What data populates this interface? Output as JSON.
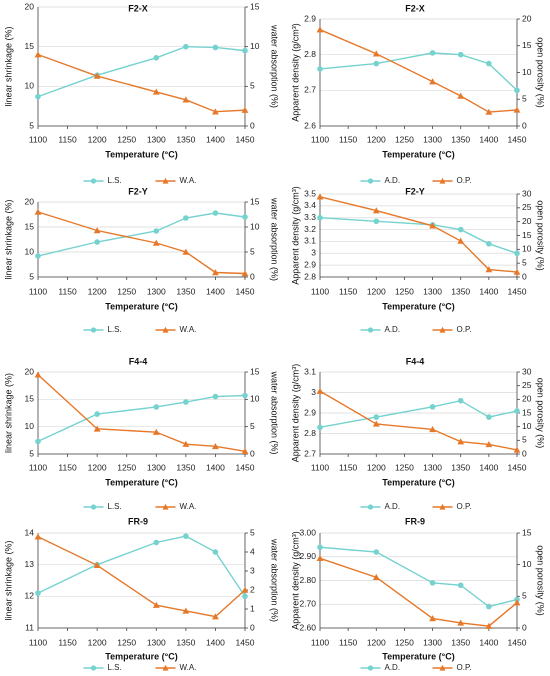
{
  "colors": {
    "ls_ad": "#74d2cf",
    "wa_op": "#e6782a",
    "axis": "#404040",
    "grid": "#d9d9d9"
  },
  "chart_data": [
    {
      "type": "line",
      "title": "F2-X",
      "xlabel": "Temperature (°C)",
      "ylabel_left": "linear shrinkage (%)",
      "ylabel_right": "water absorption (%)",
      "x": [
        1100,
        1200,
        1300,
        1350,
        1400,
        1450
      ],
      "xticks": [
        1100,
        1150,
        1200,
        1250,
        1300,
        1350,
        1400,
        1450
      ],
      "xlim": [
        1100,
        1450
      ],
      "ylim_left": [
        5,
        20
      ],
      "yticks_left": [
        5,
        10,
        15,
        20
      ],
      "ylim_right": [
        0,
        15
      ],
      "yticks_right": [
        0,
        5,
        10,
        15
      ],
      "series": [
        {
          "name": "L.S.",
          "axis": "left",
          "marker": "circle",
          "values": [
            8.7,
            11.4,
            13.6,
            15.0,
            14.9,
            14.5
          ]
        },
        {
          "name": "W.A.",
          "axis": "right",
          "marker": "triangle",
          "values": [
            9.0,
            6.3,
            4.3,
            3.3,
            1.8,
            2.0
          ]
        }
      ]
    },
    {
      "type": "line",
      "title": "F2-X",
      "xlabel": "Temperature (°C)",
      "ylabel_left": "Apparent density (g/cm³)",
      "ylabel_right": "open porosity (%)",
      "x": [
        1100,
        1200,
        1300,
        1350,
        1400,
        1450
      ],
      "xticks": [
        1100,
        1150,
        1200,
        1250,
        1300,
        1350,
        1400,
        1450
      ],
      "xlim": [
        1100,
        1450
      ],
      "ylim_left": [
        2.6,
        2.9
      ],
      "yticks_left": [
        2.6,
        2.7,
        2.8,
        2.9
      ],
      "ylim_right": [
        0,
        20
      ],
      "yticks_right": [
        0,
        5,
        10,
        15,
        20
      ],
      "series": [
        {
          "name": "A.D.",
          "axis": "left",
          "marker": "circle",
          "values": [
            2.76,
            2.775,
            2.805,
            2.8,
            2.775,
            2.7
          ]
        },
        {
          "name": "O.P.",
          "axis": "right",
          "marker": "triangle",
          "values": [
            18.0,
            13.5,
            8.3,
            5.6,
            2.6,
            3.0
          ]
        }
      ]
    },
    {
      "type": "line",
      "title": "F2-Y",
      "xlabel": "Temperature (°C)",
      "ylabel_left": "linear shrinkage (%)",
      "ylabel_right": "water absorption (%)",
      "x": [
        1100,
        1200,
        1300,
        1350,
        1400,
        1450
      ],
      "xticks": [
        1100,
        1150,
        1200,
        1250,
        1300,
        1350,
        1400,
        1450
      ],
      "xlim": [
        1100,
        1450
      ],
      "ylim_left": [
        5,
        20
      ],
      "yticks_left": [
        5,
        10,
        15,
        20
      ],
      "ylim_right": [
        0,
        15
      ],
      "yticks_right": [
        0,
        5,
        10,
        15
      ],
      "series": [
        {
          "name": "L.S.",
          "axis": "left",
          "marker": "circle",
          "values": [
            9.2,
            12.0,
            14.2,
            16.8,
            17.8,
            17.0
          ]
        },
        {
          "name": "W.A.",
          "axis": "right",
          "marker": "triangle",
          "values": [
            13.0,
            9.3,
            6.8,
            5.0,
            0.9,
            0.7
          ]
        }
      ]
    },
    {
      "type": "line",
      "title": "F2-Y",
      "xlabel": "Temperature (°C)",
      "ylabel_left": "Apparent density (g/cm³)",
      "ylabel_right": "open porosity (%)",
      "x": [
        1100,
        1200,
        1300,
        1350,
        1400,
        1450
      ],
      "xticks": [
        1100,
        1150,
        1200,
        1250,
        1300,
        1350,
        1400,
        1450
      ],
      "xlim": [
        1100,
        1450
      ],
      "ylim_left": [
        2.8,
        3.5
      ],
      "yticks_left": [
        2.8,
        2.9,
        3.0,
        3.1,
        3.2,
        3.3,
        3.4,
        3.5
      ],
      "ylim_right": [
        0,
        30
      ],
      "yticks_right": [
        0,
        5,
        10,
        15,
        20,
        25,
        30
      ],
      "series": [
        {
          "name": "A.D.",
          "axis": "left",
          "marker": "circle",
          "values": [
            3.3,
            3.27,
            3.24,
            3.2,
            3.08,
            3.0
          ]
        },
        {
          "name": "O.P.",
          "axis": "right",
          "marker": "triangle",
          "values": [
            29.0,
            24.0,
            18.5,
            13.0,
            2.7,
            1.8
          ]
        }
      ]
    },
    {
      "type": "line",
      "title": "F4-4",
      "xlabel": "Temperature (°C)",
      "ylabel_left": "linear shrinkage (%)",
      "ylabel_right": "water absorption (%)",
      "x": [
        1100,
        1200,
        1300,
        1350,
        1400,
        1450
      ],
      "xticks": [
        1100,
        1150,
        1200,
        1250,
        1300,
        1350,
        1400,
        1450
      ],
      "xlim": [
        1100,
        1450
      ],
      "ylim_left": [
        5,
        20
      ],
      "yticks_left": [
        5,
        10,
        15,
        20
      ],
      "ylim_right": [
        0,
        15
      ],
      "yticks_right": [
        0,
        5,
        10,
        15
      ],
      "series": [
        {
          "name": "L.S.",
          "axis": "left",
          "marker": "circle",
          "values": [
            7.3,
            12.3,
            13.6,
            14.5,
            15.5,
            15.7
          ]
        },
        {
          "name": "W.A.",
          "axis": "right",
          "marker": "triangle",
          "values": [
            14.5,
            4.6,
            4.0,
            1.8,
            1.4,
            0.5
          ]
        }
      ]
    },
    {
      "type": "line",
      "title": "F4-4",
      "xlabel": "Temperature (°C)",
      "ylabel_left": "Apparent density (g/cm³)",
      "ylabel_right": "open porosity (%)",
      "x": [
        1100,
        1200,
        1300,
        1350,
        1400,
        1450
      ],
      "xticks": [
        1100,
        1150,
        1200,
        1250,
        1300,
        1350,
        1400,
        1450
      ],
      "xlim": [
        1100,
        1450
      ],
      "ylim_left": [
        2.7,
        3.1
      ],
      "yticks_left": [
        2.7,
        2.8,
        2.9,
        3.0,
        3.1
      ],
      "ylim_right": [
        0,
        30
      ],
      "yticks_right": [
        0,
        5,
        10,
        15,
        20,
        25,
        30
      ],
      "series": [
        {
          "name": "A.D.",
          "axis": "left",
          "marker": "circle",
          "values": [
            2.83,
            2.88,
            2.93,
            2.96,
            2.88,
            2.91
          ]
        },
        {
          "name": "O.P.",
          "axis": "right",
          "marker": "triangle",
          "values": [
            23.0,
            11.0,
            9.0,
            4.5,
            3.5,
            1.5
          ]
        }
      ]
    },
    {
      "type": "line",
      "title": "FR-9",
      "xlabel": "Temperature (°C)",
      "ylabel_left": "linear shrinkage (%)",
      "ylabel_right": "water absorption (%)",
      "x": [
        1100,
        1200,
        1300,
        1350,
        1400,
        1450
      ],
      "xticks": [
        1100,
        1150,
        1200,
        1250,
        1300,
        1350,
        1400,
        1450
      ],
      "xlim": [
        1100,
        1450
      ],
      "ylim_left": [
        11,
        14
      ],
      "yticks_left": [
        11,
        12,
        13,
        14
      ],
      "ylim_right": [
        0,
        5
      ],
      "yticks_right": [
        0,
        1,
        2,
        3,
        4,
        5
      ],
      "series": [
        {
          "name": "L.S.",
          "axis": "left",
          "marker": "circle",
          "values": [
            12.1,
            13.0,
            13.7,
            13.9,
            13.4,
            12.0
          ]
        },
        {
          "name": "W.A.",
          "axis": "right",
          "marker": "triangle",
          "values": [
            4.8,
            3.3,
            1.2,
            0.9,
            0.6,
            2.0
          ]
        }
      ]
    },
    {
      "type": "line",
      "title": "FR-9",
      "xlabel": "Temperature (°C)",
      "ylabel_left": "Apparent density (g/cm³)",
      "ylabel_right": "open porosity (%)",
      "x": [
        1100,
        1200,
        1300,
        1350,
        1400,
        1450
      ],
      "xticks": [
        1100,
        1150,
        1200,
        1250,
        1300,
        1350,
        1400,
        1450
      ],
      "xlim": [
        1100,
        1450
      ],
      "ylim_left": [
        2.6,
        3.0
      ],
      "yticks_left": [
        2.6,
        2.7,
        2.8,
        2.9,
        3.0
      ],
      "yticks_left_labels": [
        "2.60",
        "2.70",
        "2.80",
        "2.90",
        "3.00"
      ],
      "ylim_right": [
        0,
        15
      ],
      "yticks_right": [
        0,
        5,
        10,
        15
      ],
      "series": [
        {
          "name": "A.D.",
          "axis": "left",
          "marker": "circle",
          "values": [
            2.94,
            2.92,
            2.79,
            2.78,
            2.69,
            2.72
          ]
        },
        {
          "name": "O.P.",
          "axis": "right",
          "marker": "triangle",
          "values": [
            11.0,
            8.0,
            1.5,
            0.8,
            0.3,
            4.0
          ]
        }
      ]
    }
  ]
}
